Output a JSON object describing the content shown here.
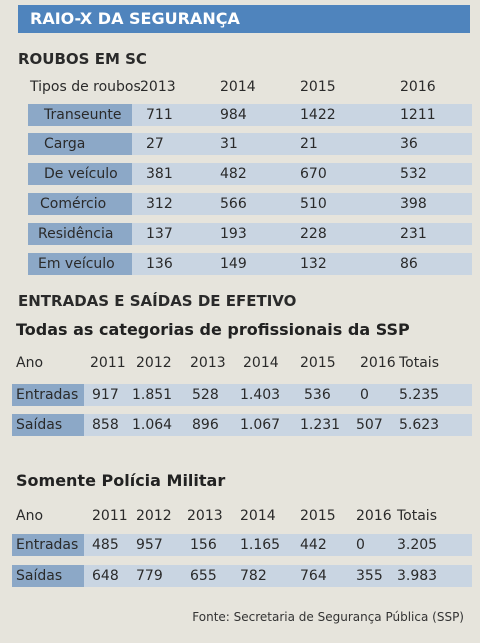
{
  "title": "RAIO-X DA SEGURANÇA",
  "colors": {
    "title_bg": "#4f84bd",
    "band_light": "#c9d5e2",
    "band_dark": "#8ca8c7"
  },
  "roubos": {
    "heading": "ROUBOS EM SC",
    "header": {
      "label": "Tipos de roubos",
      "years": [
        "2013",
        "2014",
        "2015",
        "2016"
      ]
    },
    "rows": [
      {
        "name": "Transeunte",
        "values": [
          "711",
          "984",
          "1422",
          "1211"
        ]
      },
      {
        "name": "Carga",
        "values": [
          "27",
          "31",
          "21",
          "36"
        ]
      },
      {
        "name": "De veículo",
        "values": [
          "381",
          "482",
          "670",
          "532"
        ]
      },
      {
        "name": "Comércio",
        "values": [
          "312",
          "566",
          "510",
          "398"
        ]
      },
      {
        "name": "Residência",
        "values": [
          "137",
          "193",
          "228",
          "231"
        ]
      },
      {
        "name": "Em veículo",
        "values": [
          "136",
          "149",
          "132",
          "86"
        ]
      }
    ]
  },
  "efetivo": {
    "heading": "ENTRADAS E SAÍDAS DE EFETIVO",
    "todas": {
      "title": "Todas as categorias de profissionais da SSP",
      "header": {
        "label": "Ano",
        "years": [
          "2011",
          "2012",
          "2013",
          "2014",
          "2015",
          "2016"
        ],
        "total": "Totais"
      },
      "rows": [
        {
          "name": "Entradas",
          "values": [
            "917",
            "1.851",
            "528",
            "1.403",
            "536",
            "0"
          ],
          "total": "5.235"
        },
        {
          "name": "Saídas",
          "values": [
            "858",
            "1.064",
            "896",
            "1.067",
            "1.231",
            "507"
          ],
          "total": "5.623"
        }
      ]
    },
    "pm": {
      "title": "Somente Polícia Militar",
      "header": {
        "label": "Ano",
        "years": [
          "2011",
          "2012",
          "2013",
          "2014",
          "2015",
          "2016"
        ],
        "total": "Totais"
      },
      "rows": [
        {
          "name": "Entradas",
          "values": [
            "485",
            "957",
            "156",
            "1.165",
            "442",
            "0"
          ],
          "total": "3.205"
        },
        {
          "name": "Saídas",
          "values": [
            "648",
            "779",
            "655",
            "782",
            "764",
            "355"
          ],
          "total": "3.983"
        }
      ]
    }
  },
  "footer": "Fonte: Secretaria de Segurança Pública (SSP)"
}
